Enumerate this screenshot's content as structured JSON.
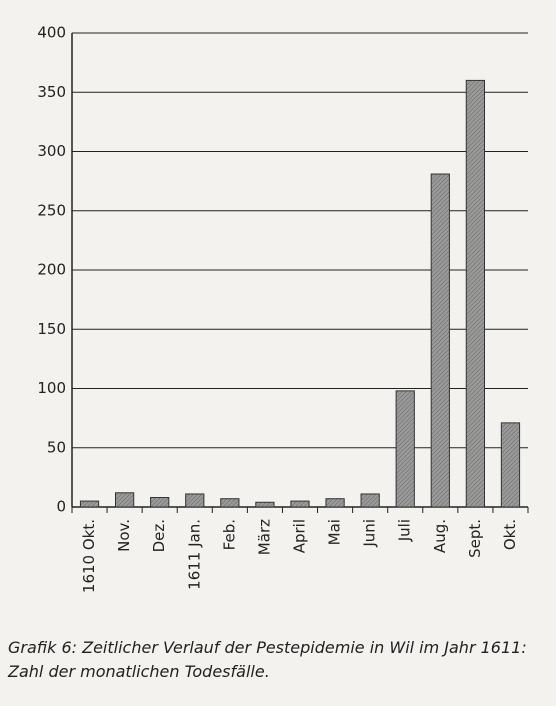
{
  "chart_data": {
    "type": "bar",
    "categories": [
      "1610 Okt.",
      "Nov.",
      "Dez.",
      "1611 Jan.",
      "Feb.",
      "März",
      "April",
      "Mai",
      "Juni",
      "Juli",
      "Aug.",
      "Sept.",
      "Okt."
    ],
    "values": [
      5,
      12,
      8,
      11,
      7,
      4,
      5,
      7,
      11,
      98,
      281,
      360,
      71
    ],
    "color": "#9a9a9a",
    "ylim": [
      0,
      400
    ],
    "yticks": [
      0,
      50,
      100,
      150,
      200,
      250,
      300,
      350,
      400
    ],
    "grid": true,
    "caption": "Grafik 6: Zeitlicher Verlauf der Pestepidemie in Wil im Jahr 1611: Zahl der monatlichen Todesfälle."
  }
}
